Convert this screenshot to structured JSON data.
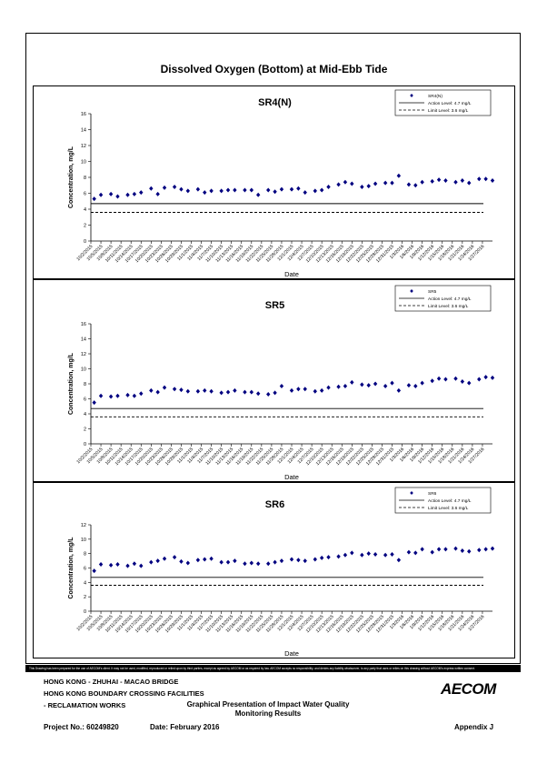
{
  "page": {
    "main_title": "Dissolved Oxygen (Bottom) at Mid-Ebb Tide",
    "disclaimer": "This Drawing has been prepared for the use of AECOM's client. It may not be used, modified, reproduced or relied upon by third parties, except as agreed by AECOM or as required by law. AECOM accepts no responsibility, and denies any liability whatsoever, to any party that uses or relies on this drawing without AECOM's express written consent."
  },
  "footer": {
    "line1": "HONG KONG - ZHUHAI - MACAO BRIDGE",
    "line2": "HONG KONG BOUNDARY CROSSING FACILITIES",
    "line3": "- RECLAMATION WORKS",
    "project": "Project No.: 60249820",
    "date": "Date: February 2016",
    "center1": "Graphical Presentation of Impact Water Quality",
    "center2": "Monitoring Results",
    "appendix": "Appendix J",
    "logo": "AECOM"
  },
  "chart_data": [
    {
      "type": "scatter",
      "title": "SR4(N)",
      "xlabel": "Date",
      "ylabel": "Concentration, mg/L",
      "ylim": [
        0,
        16
      ],
      "yticks": [
        0,
        2,
        4,
        6,
        8,
        10,
        12,
        14,
        16
      ],
      "xticks": [
        "10/2/2015",
        "10/5/2015",
        "10/8/2015",
        "10/11/2015",
        "10/14/2015",
        "10/17/2015",
        "10/20/2015",
        "10/23/2015",
        "10/26/2015",
        "10/29/2015",
        "11/1/2015",
        "11/4/2015",
        "11/7/2015",
        "11/10/2015",
        "11/13/2015",
        "11/16/2015",
        "11/19/2015",
        "11/22/2015",
        "11/25/2015",
        "11/28/2015",
        "12/1/2015",
        "12/4/2015",
        "12/7/2015",
        "12/10/2015",
        "12/13/2015",
        "12/16/2015",
        "12/19/2015",
        "12/22/2015",
        "12/25/2015",
        "12/28/2015",
        "12/31/2015",
        "1/3/2016",
        "1/6/2016",
        "1/9/2016",
        "1/12/2016",
        "1/15/2016",
        "1/18/2016",
        "1/21/2016",
        "1/24/2016",
        "1/27/2016"
      ],
      "x_range": [
        "10/2/2015",
        "1/30/2016"
      ],
      "grid": false,
      "legend": "top-right",
      "series": [
        {
          "name": "SR4(N)",
          "marker": "diamond",
          "color": "#000080",
          "x": [
            "10/3/2015",
            "10/5/2015",
            "10/8/2015",
            "10/10/2015",
            "10/13/2015",
            "10/15/2015",
            "10/17/2015",
            "10/20/2015",
            "10/22/2015",
            "10/24/2015",
            "10/27/2015",
            "10/29/2015",
            "10/31/2015",
            "11/3/2015",
            "11/5/2015",
            "11/7/2015",
            "11/10/2015",
            "11/12/2015",
            "11/14/2015",
            "11/17/2015",
            "11/19/2015",
            "11/21/2015",
            "11/24/2015",
            "11/26/2015",
            "11/28/2015",
            "12/1/2015",
            "12/3/2015",
            "12/5/2015",
            "12/8/2015",
            "12/10/2015",
            "12/12/2015",
            "12/15/2015",
            "12/17/2015",
            "12/19/2015",
            "12/22/2015",
            "12/24/2015",
            "12/26/2015",
            "12/29/2015",
            "12/31/2015",
            "1/2/2016",
            "1/5/2016",
            "1/7/2016",
            "1/9/2016",
            "1/12/2016",
            "1/14/2016",
            "1/16/2016",
            "1/19/2016",
            "1/21/2016",
            "1/23/2016",
            "1/26/2016",
            "1/28/2016",
            "1/30/2016"
          ],
          "values": [
            5.3,
            5.8,
            5.9,
            5.6,
            5.8,
            5.9,
            6.1,
            6.6,
            5.9,
            6.7,
            6.8,
            6.5,
            6.3,
            6.5,
            6.1,
            6.3,
            6.3,
            6.4,
            6.4,
            6.4,
            6.4,
            5.8,
            6.4,
            6.2,
            6.5,
            6.5,
            6.6,
            6.1,
            6.3,
            6.4,
            6.8,
            7.1,
            7.4,
            7.2,
            6.8,
            6.9,
            7.2,
            7.3,
            7.3,
            8.2,
            7.1,
            7.0,
            7.4,
            7.5,
            7.7,
            7.6,
            7.4,
            7.6,
            7.3,
            7.8,
            7.8,
            7.6
          ]
        },
        {
          "name": "Action Level: 4.7 mg/L",
          "type": "line",
          "style": "solid",
          "values": [
            4.7
          ]
        },
        {
          "name": "Limit Level: 3.6 mg/L",
          "type": "line",
          "style": "dashed",
          "values": [
            3.6
          ]
        }
      ]
    },
    {
      "type": "scatter",
      "title": "SR5",
      "xlabel": "Date",
      "ylabel": "Concentration, mg/L",
      "ylim": [
        0,
        16
      ],
      "yticks": [
        0,
        2,
        4,
        6,
        8,
        10,
        12,
        14,
        16
      ],
      "xticks": [
        "10/2/2015",
        "10/5/2015",
        "10/8/2015",
        "10/11/2015",
        "10/14/2015",
        "10/17/2015",
        "10/20/2015",
        "10/23/2015",
        "10/26/2015",
        "10/29/2015",
        "11/1/2015",
        "11/4/2015",
        "11/7/2015",
        "11/10/2015",
        "11/13/2015",
        "11/16/2015",
        "11/19/2015",
        "11/22/2015",
        "11/25/2015",
        "11/28/2015",
        "12/1/2015",
        "12/4/2015",
        "12/7/2015",
        "12/10/2015",
        "12/13/2015",
        "12/16/2015",
        "12/19/2015",
        "12/22/2015",
        "12/25/2015",
        "12/28/2015",
        "12/31/2015",
        "1/3/2016",
        "1/6/2016",
        "1/9/2016",
        "1/12/2016",
        "1/15/2016",
        "1/18/2016",
        "1/21/2016",
        "1/24/2016",
        "1/27/2016"
      ],
      "x_range": [
        "10/2/2015",
        "1/30/2016"
      ],
      "grid": false,
      "legend": "top-right",
      "series": [
        {
          "name": "SR5",
          "marker": "diamond",
          "color": "#000080",
          "x": [
            "10/3/2015",
            "10/5/2015",
            "10/8/2015",
            "10/10/2015",
            "10/13/2015",
            "10/15/2015",
            "10/17/2015",
            "10/20/2015",
            "10/22/2015",
            "10/24/2015",
            "10/27/2015",
            "10/29/2015",
            "10/31/2015",
            "11/3/2015",
            "11/5/2015",
            "11/7/2015",
            "11/10/2015",
            "11/12/2015",
            "11/14/2015",
            "11/17/2015",
            "11/19/2015",
            "11/21/2015",
            "11/24/2015",
            "11/26/2015",
            "11/28/2015",
            "12/1/2015",
            "12/3/2015",
            "12/5/2015",
            "12/8/2015",
            "12/10/2015",
            "12/12/2015",
            "12/15/2015",
            "12/17/2015",
            "12/19/2015",
            "12/22/2015",
            "12/24/2015",
            "12/26/2015",
            "12/29/2015",
            "12/31/2015",
            "1/2/2016",
            "1/5/2016",
            "1/7/2016",
            "1/9/2016",
            "1/12/2016",
            "1/14/2016",
            "1/16/2016",
            "1/19/2016",
            "1/21/2016",
            "1/23/2016",
            "1/26/2016",
            "1/28/2016",
            "1/30/2016"
          ],
          "values": [
            5.5,
            6.4,
            6.3,
            6.4,
            6.5,
            6.4,
            6.7,
            7.1,
            6.9,
            7.5,
            7.3,
            7.2,
            7.0,
            7.0,
            7.1,
            7.0,
            6.8,
            6.9,
            7.1,
            6.9,
            6.9,
            6.7,
            6.6,
            6.8,
            7.7,
            7.1,
            7.3,
            7.3,
            7.0,
            7.1,
            7.5,
            7.6,
            7.7,
            8.2,
            7.9,
            7.8,
            8.0,
            7.7,
            8.1,
            7.1,
            7.8,
            7.7,
            8.1,
            8.4,
            8.7,
            8.6,
            8.7,
            8.3,
            8.1,
            8.6,
            8.9,
            8.8
          ]
        },
        {
          "name": "Action Level: 4.7 mg/L",
          "type": "line",
          "style": "solid",
          "values": [
            4.7
          ]
        },
        {
          "name": "Limit Level: 3.6 mg/L",
          "type": "line",
          "style": "dashed",
          "values": [
            3.6
          ]
        }
      ]
    },
    {
      "type": "scatter",
      "title": "SR6",
      "xlabel": "Date",
      "ylabel": "Concentration, mg/L",
      "ylim": [
        0,
        12
      ],
      "yticks": [
        0,
        2,
        4,
        6,
        8,
        10,
        12
      ],
      "xticks": [
        "10/2/2015",
        "10/5/2015",
        "10/8/2015",
        "10/11/2015",
        "10/14/2015",
        "10/17/2015",
        "10/20/2015",
        "10/23/2015",
        "10/26/2015",
        "10/29/2015",
        "11/1/2015",
        "11/4/2015",
        "11/7/2015",
        "11/10/2015",
        "11/13/2015",
        "11/16/2015",
        "11/19/2015",
        "11/22/2015",
        "11/25/2015",
        "11/28/2015",
        "12/1/2015",
        "12/4/2015",
        "12/7/2015",
        "12/10/2015",
        "12/13/2015",
        "12/16/2015",
        "12/19/2015",
        "12/22/2015",
        "12/25/2015",
        "12/28/2015",
        "12/31/2015",
        "1/3/2016",
        "1/6/2016",
        "1/9/2016",
        "1/12/2016",
        "1/15/2016",
        "1/18/2016",
        "1/21/2016",
        "1/24/2016",
        "1/27/2016"
      ],
      "x_range": [
        "10/2/2015",
        "1/30/2016"
      ],
      "grid": false,
      "legend": "top-right",
      "series": [
        {
          "name": "SR6",
          "marker": "diamond",
          "color": "#000080",
          "x": [
            "10/3/2015",
            "10/5/2015",
            "10/8/2015",
            "10/10/2015",
            "10/13/2015",
            "10/15/2015",
            "10/17/2015",
            "10/20/2015",
            "10/22/2015",
            "10/24/2015",
            "10/27/2015",
            "10/29/2015",
            "10/31/2015",
            "11/3/2015",
            "11/5/2015",
            "11/7/2015",
            "11/10/2015",
            "11/12/2015",
            "11/14/2015",
            "11/17/2015",
            "11/19/2015",
            "11/21/2015",
            "11/24/2015",
            "11/26/2015",
            "11/28/2015",
            "12/1/2015",
            "12/3/2015",
            "12/5/2015",
            "12/8/2015",
            "12/10/2015",
            "12/12/2015",
            "12/15/2015",
            "12/17/2015",
            "12/19/2015",
            "12/22/2015",
            "12/24/2015",
            "12/26/2015",
            "12/29/2015",
            "12/31/2015",
            "1/2/2016",
            "1/5/2016",
            "1/7/2016",
            "1/9/2016",
            "1/12/2016",
            "1/14/2016",
            "1/16/2016",
            "1/19/2016",
            "1/21/2016",
            "1/23/2016",
            "1/26/2016",
            "1/28/2016",
            "1/30/2016"
          ],
          "values": [
            5.6,
            6.5,
            6.4,
            6.5,
            6.3,
            6.6,
            6.3,
            6.8,
            7.0,
            7.3,
            7.5,
            6.9,
            6.7,
            7.1,
            7.2,
            7.3,
            6.8,
            6.8,
            7.0,
            6.6,
            6.7,
            6.6,
            6.6,
            6.8,
            7.0,
            7.2,
            7.1,
            7.0,
            7.2,
            7.4,
            7.5,
            7.6,
            7.8,
            8.1,
            7.8,
            8.0,
            7.9,
            7.8,
            7.9,
            7.1,
            8.2,
            8.1,
            8.6,
            8.2,
            8.6,
            8.6,
            8.7,
            8.4,
            8.3,
            8.5,
            8.6,
            8.7
          ]
        },
        {
          "name": "Action Level: 4.7 mg/L",
          "type": "line",
          "style": "solid",
          "values": [
            4.7
          ]
        },
        {
          "name": "Limit Level: 3.6 mg/L",
          "type": "line",
          "style": "dashed",
          "values": [
            3.6
          ]
        }
      ]
    }
  ]
}
